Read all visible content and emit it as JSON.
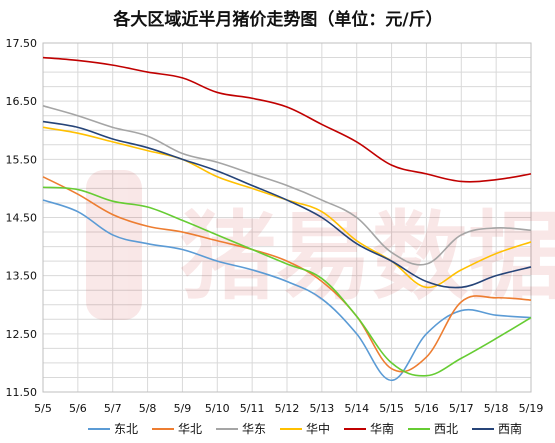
{
  "chart_data": {
    "type": "line",
    "title": "各大区域近半月猪价走势图（单位：元/斤）",
    "xlabel": "",
    "ylabel": "",
    "categories": [
      "5/5",
      "5/6",
      "5/7",
      "5/8",
      "5/9",
      "5/10",
      "5/11",
      "5/12",
      "5/13",
      "5/14",
      "5/15",
      "5/16",
      "5/17",
      "5/18",
      "5/19"
    ],
    "ylim": [
      11.5,
      17.5
    ],
    "yticks": [
      "11.50",
      "12.50",
      "13.50",
      "14.50",
      "15.50",
      "16.50",
      "17.50"
    ],
    "grid": true,
    "legend_position": "bottom",
    "series": [
      {
        "name": "东北",
        "color": "#5b9bd5",
        "values": [
          14.8,
          14.6,
          14.2,
          14.05,
          13.95,
          13.75,
          13.6,
          13.4,
          13.1,
          12.5,
          11.7,
          12.5,
          12.9,
          12.82,
          12.78
        ]
      },
      {
        "name": "华北",
        "color": "#ed7d31",
        "values": [
          15.2,
          14.9,
          14.55,
          14.35,
          14.25,
          14.1,
          13.95,
          13.75,
          13.4,
          12.8,
          11.9,
          12.1,
          13.05,
          13.12,
          13.08
        ]
      },
      {
        "name": "华东",
        "color": "#a5a5a5",
        "values": [
          16.42,
          16.25,
          16.05,
          15.9,
          15.6,
          15.45,
          15.25,
          15.05,
          14.8,
          14.5,
          13.9,
          13.7,
          14.2,
          14.32,
          14.28
        ]
      },
      {
        "name": "华中",
        "color": "#ffc000",
        "values": [
          16.05,
          15.95,
          15.8,
          15.65,
          15.5,
          15.2,
          15.0,
          14.8,
          14.6,
          14.1,
          13.75,
          13.3,
          13.6,
          13.88,
          14.08
        ]
      },
      {
        "name": "华南",
        "color": "#c00000",
        "values": [
          17.25,
          17.2,
          17.12,
          17.0,
          16.9,
          16.65,
          16.55,
          16.4,
          16.1,
          15.8,
          15.4,
          15.25,
          15.12,
          15.15,
          15.25
        ]
      },
      {
        "name": "西北",
        "color": "#66cc33",
        "values": [
          15.02,
          14.98,
          14.78,
          14.68,
          14.45,
          14.2,
          13.95,
          13.7,
          13.45,
          12.8,
          12.0,
          11.78,
          12.08,
          12.42,
          12.78
        ]
      },
      {
        "name": "西南",
        "color": "#264478",
        "values": [
          16.15,
          16.05,
          15.85,
          15.7,
          15.5,
          15.3,
          15.05,
          14.8,
          14.5,
          14.05,
          13.75,
          13.4,
          13.3,
          13.5,
          13.65
        ]
      }
    ]
  },
  "watermark": {
    "text": "猪易数据"
  }
}
